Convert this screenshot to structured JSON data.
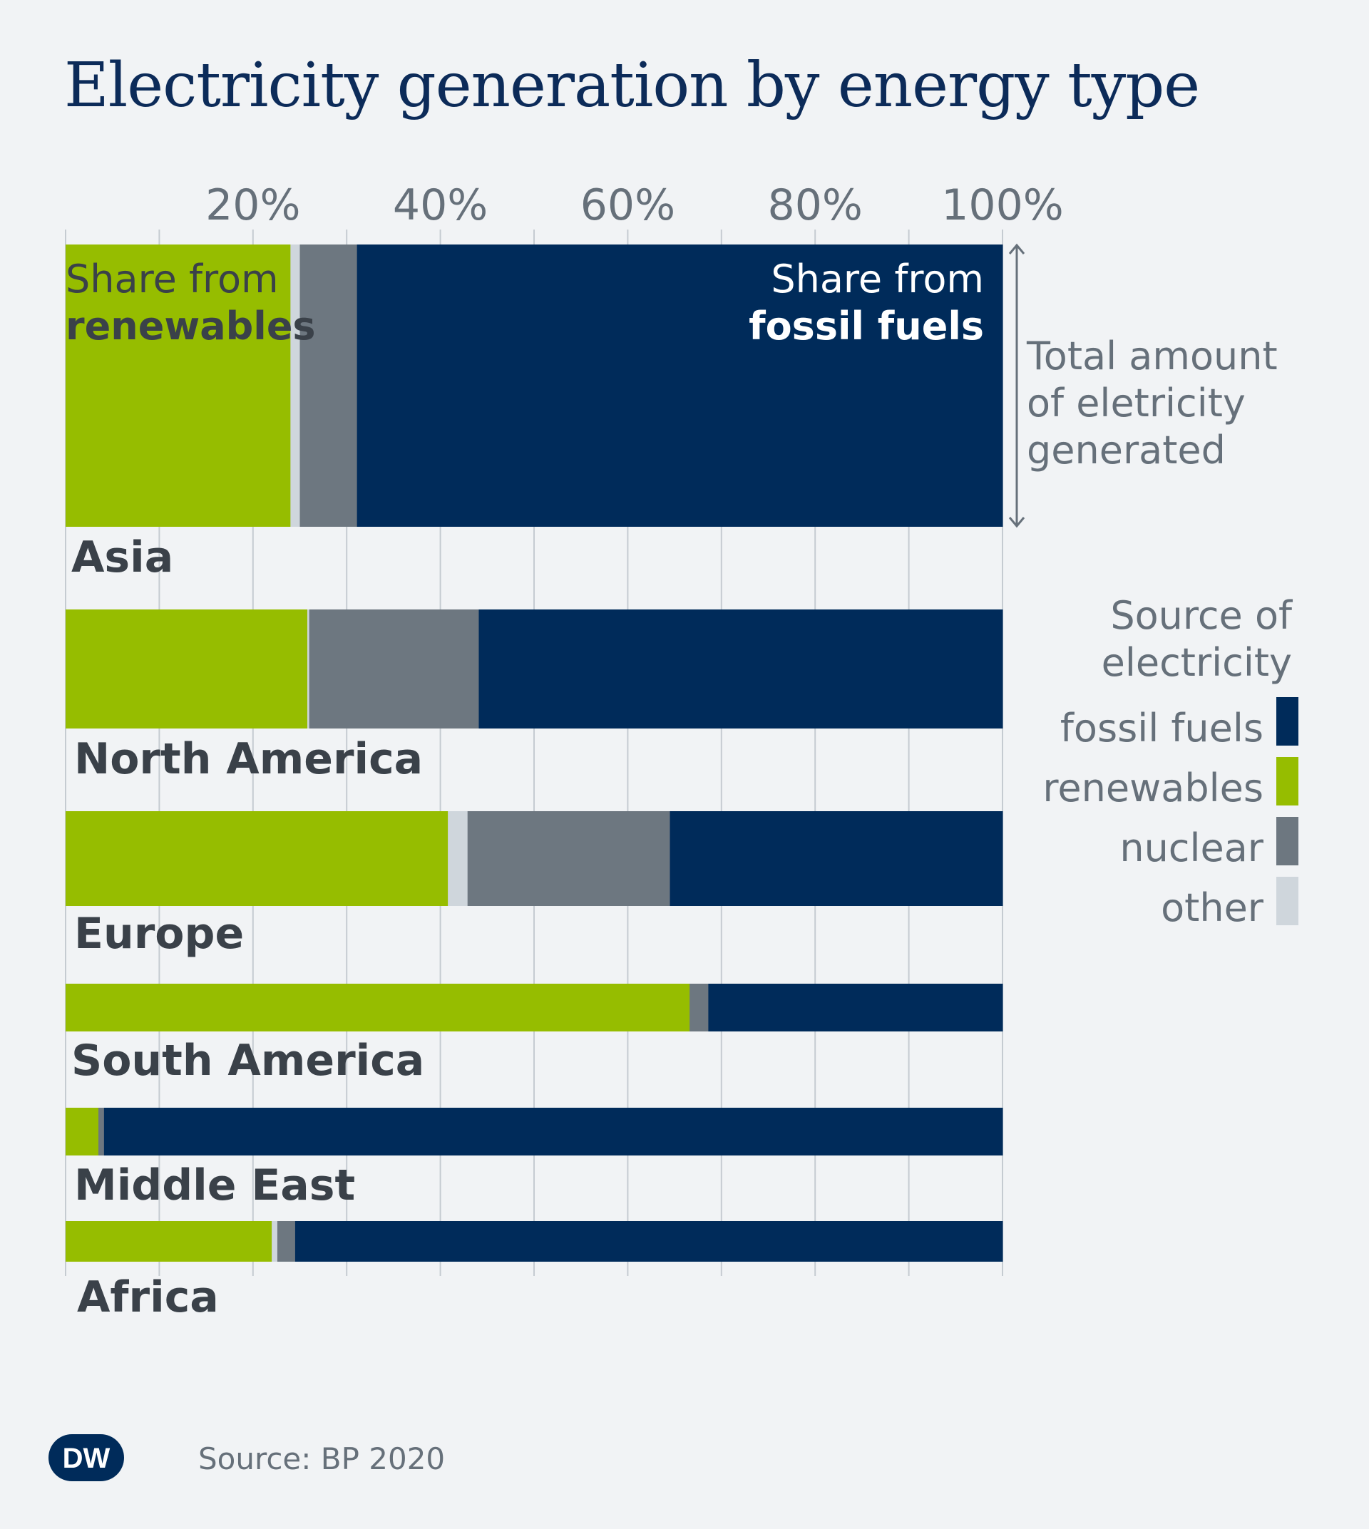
{
  "title": "Electricity generation by energy type",
  "chart_data": {
    "type": "bar",
    "orientation": "horizontal",
    "stacked": true,
    "normalized": true,
    "xlim": [
      0,
      100
    ],
    "x_ticks": [
      "20%",
      "40%",
      "60%",
      "80%",
      "100%"
    ],
    "x_tick_values": [
      20,
      40,
      60,
      80,
      100
    ],
    "grid": true,
    "categories": [
      "Asia",
      "North America",
      "Europe",
      "South America",
      "Middle East",
      "Africa"
    ],
    "bar_size_meaning": "Total amount of eletricity generated",
    "series": [
      {
        "name": "renewables",
        "color": "#96bd00",
        "values": [
          24.0,
          25.8,
          40.8,
          66.6,
          3.5,
          22.0
        ]
      },
      {
        "name": "other",
        "color": "#cfd6dc",
        "values": [
          1.0,
          0.2,
          2.1,
          0.0,
          0.0,
          0.6
        ]
      },
      {
        "name": "nuclear",
        "color": "#6d7780",
        "values": [
          6.1,
          18.1,
          21.6,
          2.0,
          0.6,
          1.9
        ]
      },
      {
        "name": "fossil fuels",
        "color": "#002b5a",
        "values": [
          68.9,
          55.9,
          35.5,
          31.4,
          95.9,
          75.5
        ]
      }
    ],
    "annotations": {
      "renewables_line1": "Share from",
      "renewables_line2": "renewables",
      "fossil_line1": "Share from",
      "fossil_line2": "fossil fuels",
      "total_line1": "Total amount",
      "total_line2": "of eletricity",
      "total_line3": "generated"
    },
    "legend": {
      "title_line1": "Source of",
      "title_line2": "electricity",
      "position": "right",
      "items": [
        {
          "label": "fossil fuels",
          "color": "#002b5a"
        },
        {
          "label": "renewables",
          "color": "#96bd00"
        },
        {
          "label": "nuclear",
          "color": "#6d7780"
        },
        {
          "label": "other",
          "color": "#cfd6dc"
        }
      ]
    }
  },
  "source": "Source: BP 2020",
  "logo_text": "DW"
}
